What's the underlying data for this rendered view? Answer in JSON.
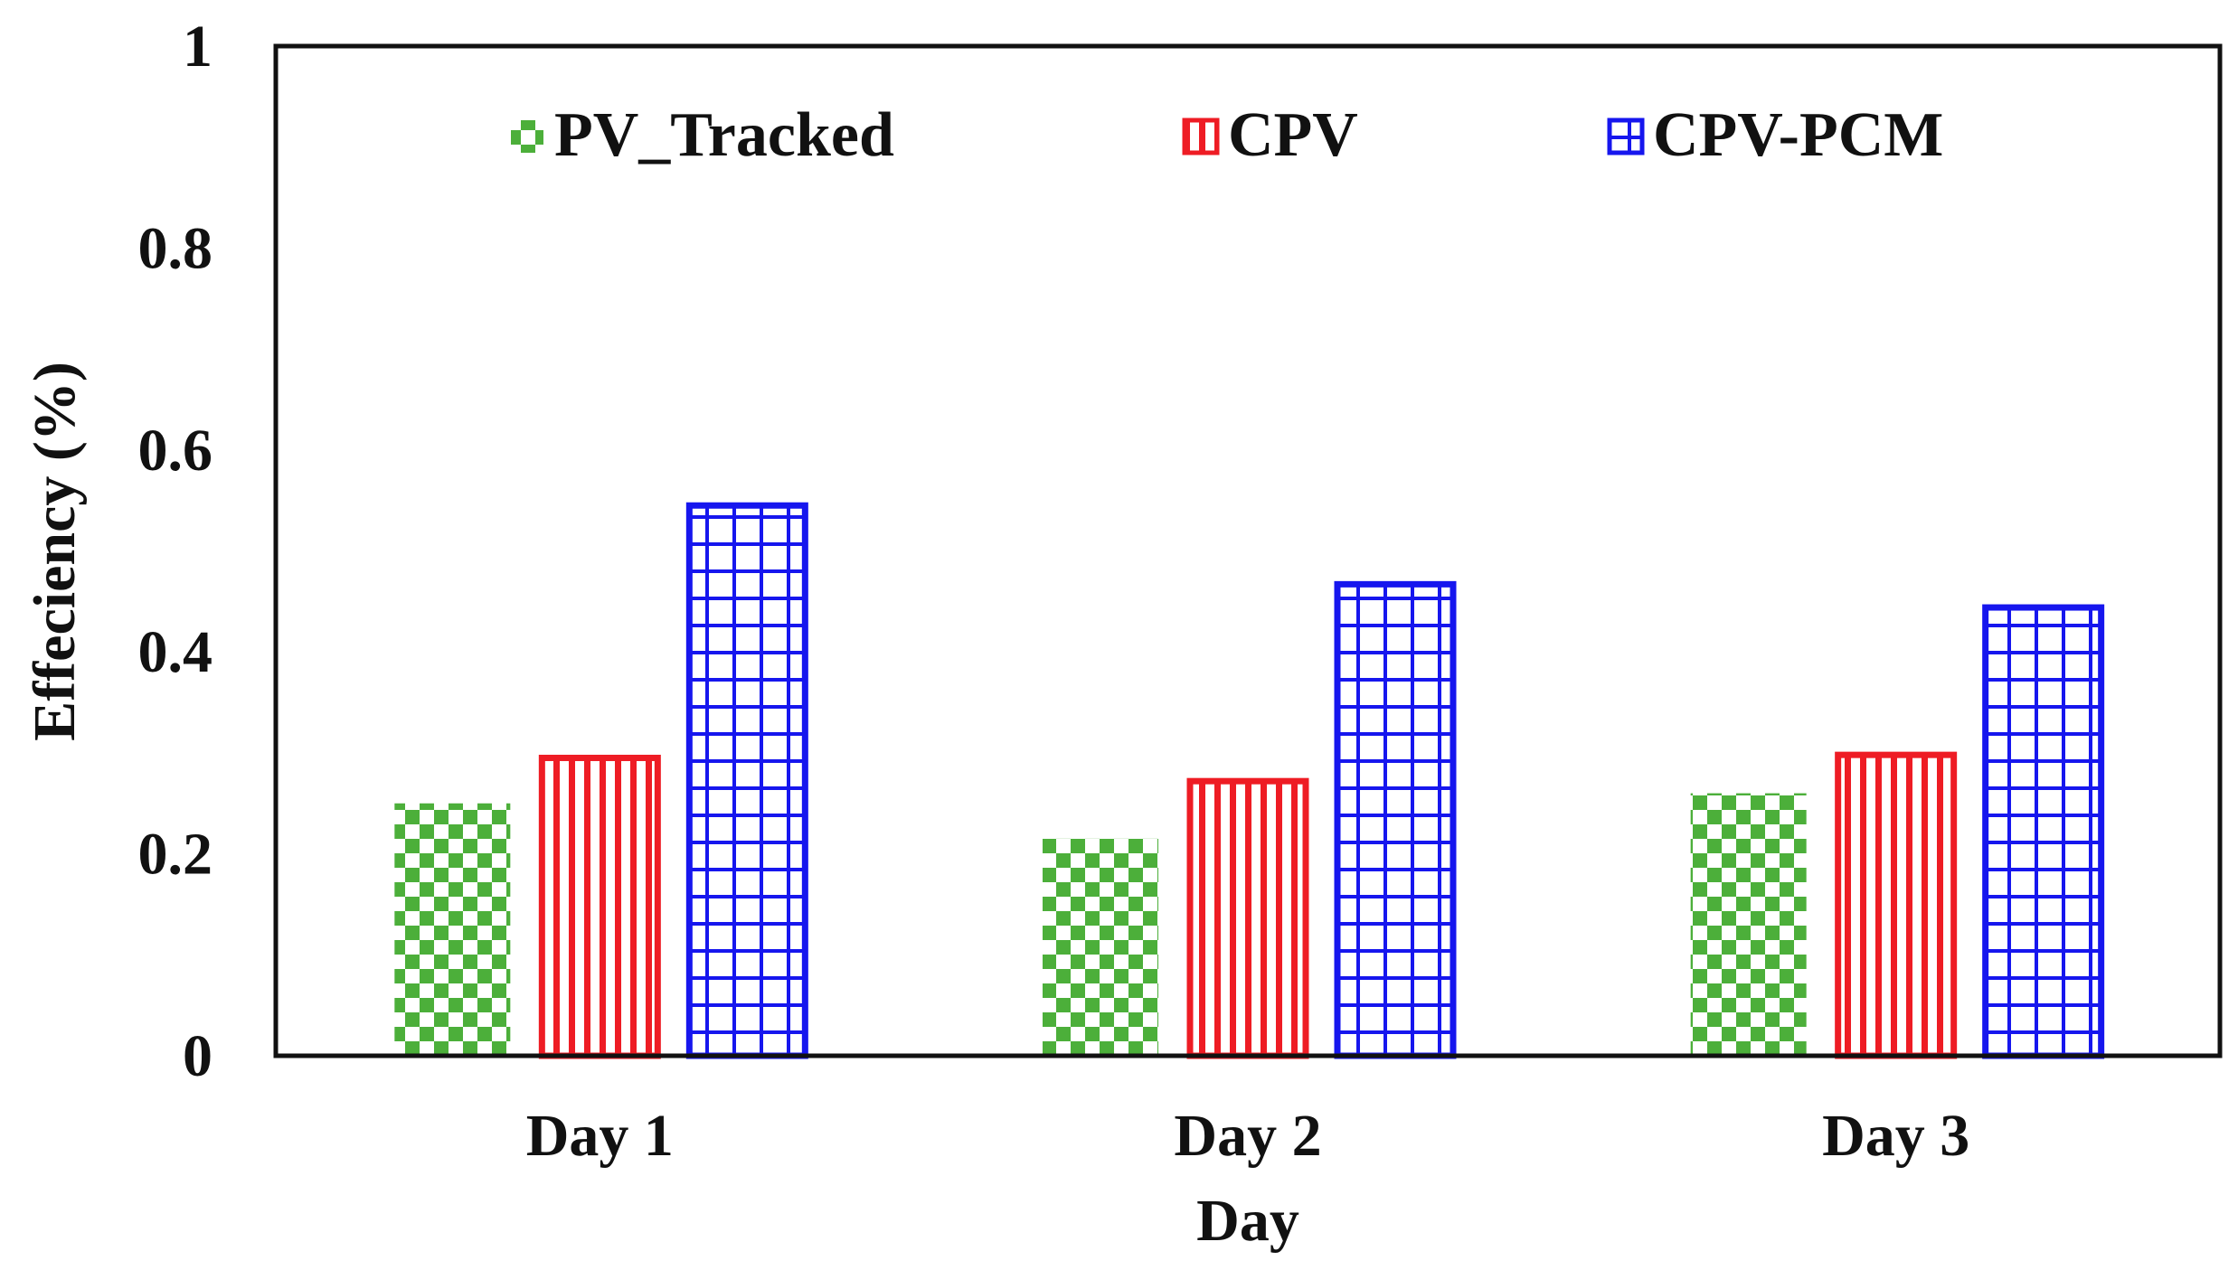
{
  "chart_data": {
    "type": "bar",
    "title": "",
    "xlabel": "Day",
    "ylabel": "Effeciency (%)",
    "categories": [
      "Day 1",
      "Day 2",
      "Day 3"
    ],
    "series": [
      {
        "name": "PV_Tracked",
        "values": [
          0.25,
          0.215,
          0.26
        ],
        "color": "#4caf3a",
        "pattern": "checkerboard"
      },
      {
        "name": "CPV",
        "values": [
          0.295,
          0.272,
          0.298
        ],
        "color": "#ee1c24",
        "pattern": "vertical-stripes"
      },
      {
        "name": "CPV-PCM",
        "values": [
          0.545,
          0.467,
          0.444
        ],
        "color": "#1616ee",
        "pattern": "grid"
      }
    ],
    "ylim": [
      0,
      1
    ],
    "yticks": [
      "0",
      "0.2",
      "0.4",
      "0.6",
      "0.8",
      "1"
    ],
    "grid": false,
    "legend_position": "top-inside"
  }
}
